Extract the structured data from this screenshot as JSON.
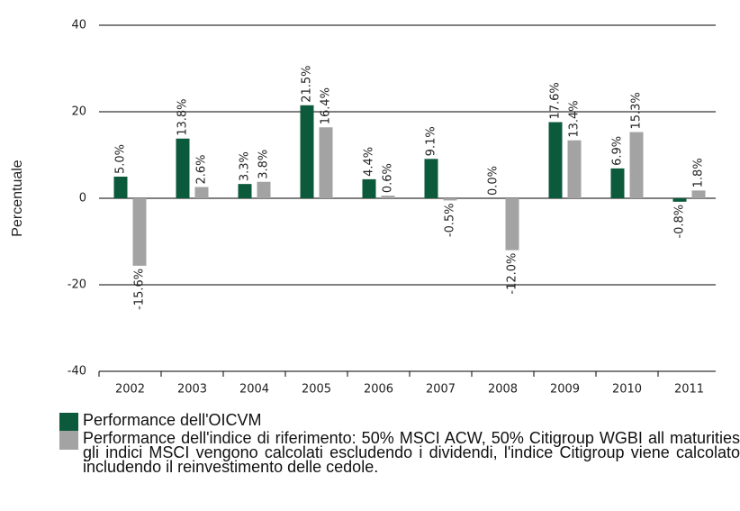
{
  "chart_data": {
    "type": "bar",
    "y_label": "Percentuale",
    "categories": [
      "2002",
      "2003",
      "2004",
      "2005",
      "2006",
      "2007",
      "2008",
      "2009",
      "2010",
      "2011"
    ],
    "series": [
      {
        "name": "Performance dell'OICVM",
        "color": "#0c5a3c",
        "values": [
          5.0,
          13.8,
          3.3,
          21.5,
          4.4,
          9.1,
          0.0,
          17.6,
          6.9,
          -0.8
        ],
        "value_labels": [
          "5.0%",
          "13.8%",
          "3.3%",
          "21.5%",
          "4.4%",
          "9.1%",
          "0.0%",
          "17.6%",
          "6.9%",
          "-0.8%"
        ]
      },
      {
        "name": "Performance dell'indice di riferimento: 50% MSCI ACW, 50% Citigroup WGBI all maturities gli indici MSCI vengono calcolati escludendo i dividendi, l'indice Citigroup viene calcolato includendo il reinvestimento delle cedole.",
        "color": "#a3a3a3",
        "values": [
          -15.6,
          2.6,
          3.8,
          16.4,
          0.6,
          -0.5,
          -12.0,
          13.4,
          15.3,
          1.8
        ],
        "value_labels": [
          "-15.6%",
          "2.6%",
          "3.8%",
          "16.4%",
          "0.6%",
          "-0.5%",
          "-12.0%",
          "13.4%",
          "15.3%",
          "1.8%"
        ]
      }
    ],
    "ylim": [
      -40,
      40
    ],
    "yticks": [
      -40,
      -20,
      0,
      20,
      40
    ],
    "grid": true
  }
}
